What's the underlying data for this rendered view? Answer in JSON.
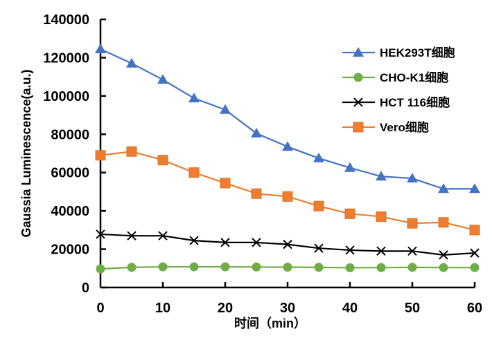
{
  "chart_data": {
    "type": "line",
    "title": "",
    "xlabel": "时间（min）",
    "ylabel": "Gaussia Luminescence(a.u.)",
    "x": [
      0,
      5,
      10,
      15,
      20,
      25,
      30,
      35,
      40,
      45,
      50,
      55,
      60
    ],
    "xlim": [
      0,
      60
    ],
    "ylim": [
      0,
      140000
    ],
    "xticks": [
      "0",
      "10",
      "20",
      "30",
      "40",
      "50",
      "60"
    ],
    "xtick_values": [
      0,
      10,
      20,
      30,
      40,
      50,
      60
    ],
    "yticks": [
      "0",
      "20000",
      "40000",
      "60000",
      "80000",
      "100000",
      "120000",
      "140000"
    ],
    "ytick_values": [
      0,
      20000,
      40000,
      60000,
      80000,
      100000,
      120000,
      140000
    ],
    "grid": false,
    "legend_position": "top-right",
    "series": [
      {
        "name": "HEK293T细胞",
        "color": "#4472C4",
        "marker": "triangle",
        "values": [
          124500,
          117000,
          108500,
          98800,
          92800,
          80500,
          73500,
          67500,
          62500,
          58000,
          57000,
          51500,
          51500
        ]
      },
      {
        "name": "CHO-K1细胞",
        "color": "#70AD47",
        "marker": "circle",
        "values": [
          9700,
          10500,
          10800,
          10800,
          10800,
          10700,
          10600,
          10500,
          10300,
          10400,
          10500,
          10400,
          10400
        ]
      },
      {
        "name": "HCT 116细胞",
        "color": "#000000",
        "marker": "x",
        "values": [
          27800,
          27000,
          27000,
          24500,
          23500,
          23500,
          22500,
          20500,
          19500,
          19000,
          19000,
          17000,
          18000
        ]
      },
      {
        "name": "Vero细胞",
        "color": "#ED7D31",
        "marker": "square",
        "values": [
          69000,
          71000,
          66500,
          60000,
          54500,
          49000,
          47500,
          42500,
          38500,
          37000,
          33500,
          34000,
          30000
        ]
      }
    ]
  }
}
